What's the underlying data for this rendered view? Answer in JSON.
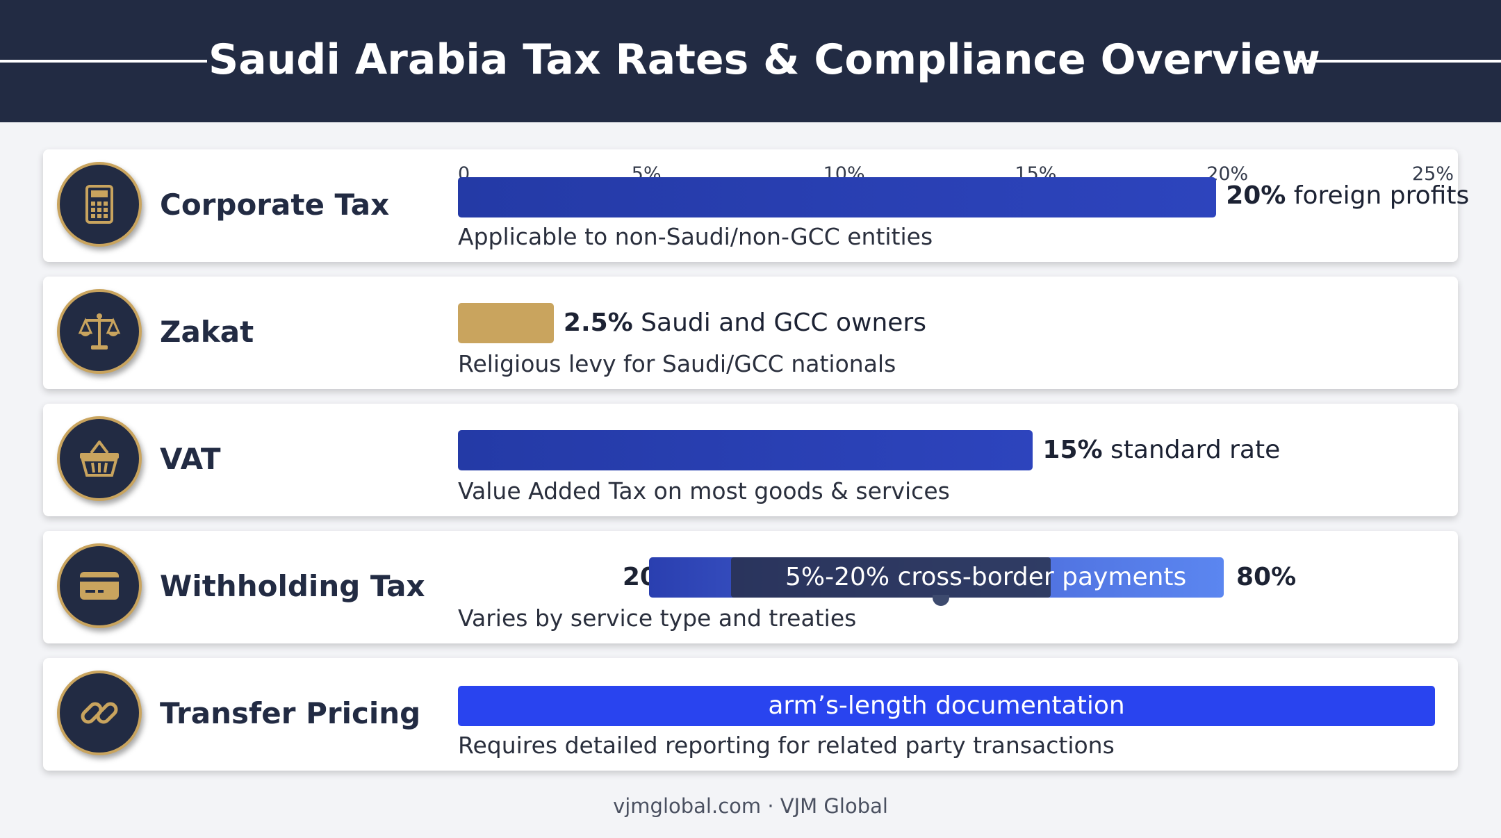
{
  "header": {
    "title": "Saudi Arabia Tax Rates & Compliance Overview"
  },
  "footer": {
    "text": "vjmglobal.com · VJM Global"
  },
  "colors": {
    "navy": "#222b43",
    "gold": "#c9a45e",
    "bar_blue": "#2a3fb0",
    "bright_blue": "#2944ef"
  },
  "rows": [
    {
      "name": "Corporate Tax",
      "icon": "calculator-icon",
      "rate_text": "20%",
      "rate_suffix": " foreign profits",
      "description": "Applicable to non-Saudi/non-GCC entities"
    },
    {
      "name": "Zakat",
      "icon": "balance-scale-icon",
      "rate_text": "2.5%",
      "rate_suffix": " Saudi and GCC owners",
      "description": "Religious levy for Saudi/GCC nationals"
    },
    {
      "name": "VAT",
      "icon": "shopping-basket-icon",
      "rate_text": "15%",
      "rate_suffix": " standard rate",
      "description": "Value Added Tax on most goods & services"
    },
    {
      "name": "Withholding Tax",
      "icon": "credit-card-icon",
      "range_low_label": "20%",
      "range_high_label": "80%",
      "range_text": "5%-20% cross-border payments",
      "description": "Varies by service type and treaties"
    },
    {
      "name": "Transfer Pricing",
      "icon": "link-icon",
      "bar_text": "arm’s-length documentation",
      "description": "Requires detailed reporting for related party transactions"
    }
  ],
  "chart_data": {
    "type": "bar",
    "orientation": "horizontal",
    "x_ticks": [
      "0",
      "5%",
      "10%",
      "15%",
      "20%",
      "25%"
    ],
    "xlim": [
      0,
      25
    ],
    "categories": [
      "Corporate Tax",
      "Zakat",
      "VAT"
    ],
    "values": [
      20,
      2.5,
      15
    ],
    "range_bar": {
      "category": "Withholding Tax",
      "low": 5,
      "high": 20
    }
  }
}
